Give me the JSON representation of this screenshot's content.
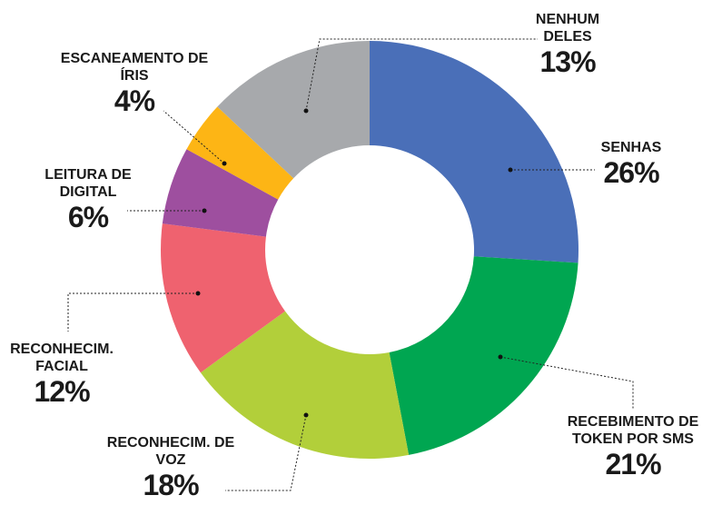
{
  "chart_data": {
    "type": "donut",
    "categories": [
      "SENHAS",
      "RECEBIMENTO DE TOKEN POR SMS",
      "RECONHECIM. DE VOZ",
      "RECONHECIM. FACIAL",
      "LEITURA DE DIGITAL",
      "ESCANEAMENTO DE ÍRIS",
      "NENHUM DELES"
    ],
    "values": [
      26,
      21,
      18,
      12,
      6,
      4,
      13
    ],
    "value_labels": [
      "26%",
      "21%",
      "18%",
      "12%",
      "6%",
      "4%",
      "13%"
    ],
    "colors": [
      "#4a6fb8",
      "#00a651",
      "#b2cf3a",
      "#ef626f",
      "#9e4f9f",
      "#fdb515",
      "#a7a9ac"
    ]
  }
}
